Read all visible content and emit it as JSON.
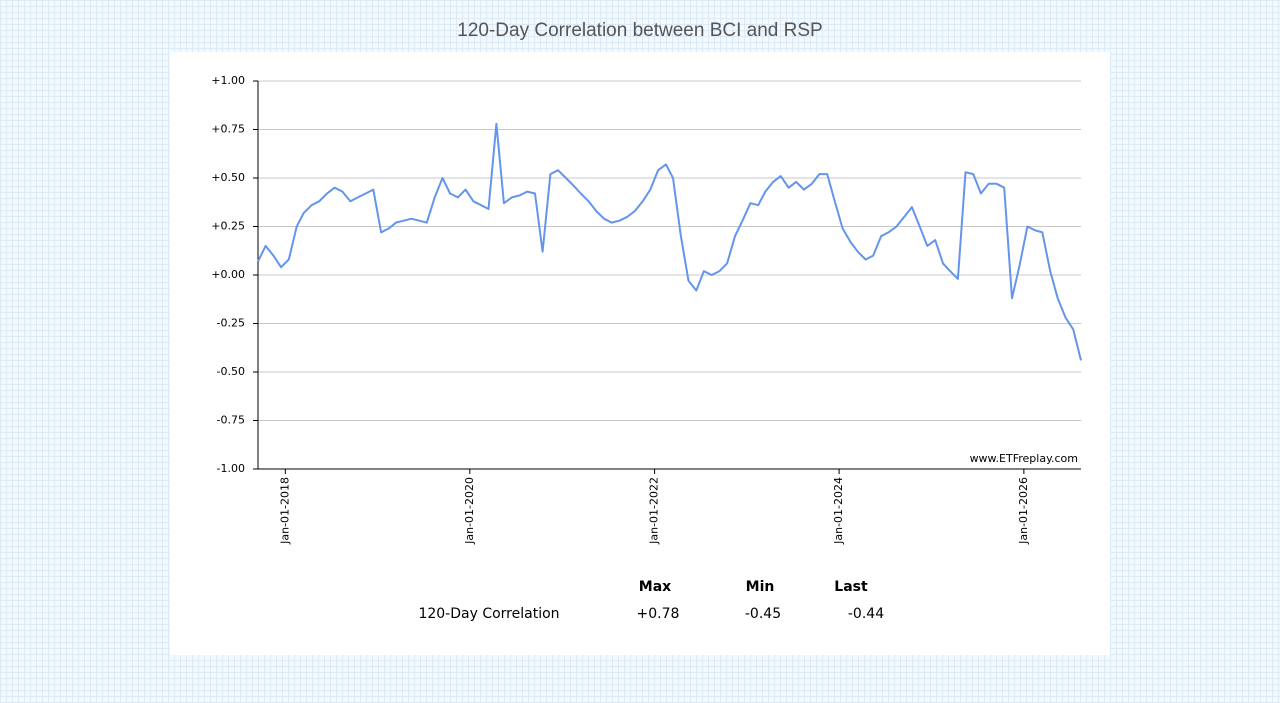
{
  "chart_data": {
    "type": "line",
    "title": "120-Day Correlation between BCI and RSP",
    "x": [
      "2017-09-15",
      "2017-10-15",
      "2017-11-15",
      "2017-12-15",
      "2018-01-15",
      "2018-02-15",
      "2018-03-15",
      "2018-04-15",
      "2018-05-15",
      "2018-06-15",
      "2018-07-15",
      "2018-08-15",
      "2018-09-15",
      "2018-10-15",
      "2018-11-15",
      "2018-12-15",
      "2019-01-15",
      "2019-02-15",
      "2019-03-15",
      "2019-04-15",
      "2019-05-15",
      "2019-06-15",
      "2019-07-15",
      "2019-08-15",
      "2019-09-15",
      "2019-10-15",
      "2019-11-15",
      "2019-12-15",
      "2020-01-15",
      "2020-02-15",
      "2020-03-15",
      "2020-04-15",
      "2020-05-15",
      "2020-06-15",
      "2020-07-15",
      "2020-08-15",
      "2020-09-15",
      "2020-10-15",
      "2020-11-15",
      "2020-12-15",
      "2021-01-15",
      "2021-02-15",
      "2021-03-15",
      "2021-04-15",
      "2021-05-15",
      "2021-06-15",
      "2021-07-15",
      "2021-08-15",
      "2021-09-15",
      "2021-10-15",
      "2021-11-15",
      "2021-12-15",
      "2022-01-15",
      "2022-02-15",
      "2022-03-15",
      "2022-04-15",
      "2022-05-15",
      "2022-06-15",
      "2022-07-15",
      "2022-08-15",
      "2022-09-15",
      "2022-10-15",
      "2022-11-15",
      "2022-12-15",
      "2023-01-15",
      "2023-02-15",
      "2023-03-15",
      "2023-04-15",
      "2023-05-15",
      "2023-06-15",
      "2023-07-15",
      "2023-08-15",
      "2023-09-15",
      "2023-10-15",
      "2023-11-15",
      "2023-12-15",
      "2024-01-15",
      "2024-02-15",
      "2024-03-15",
      "2024-04-15",
      "2024-05-15",
      "2024-06-15",
      "2024-07-15",
      "2024-08-15",
      "2024-09-15",
      "2024-10-15",
      "2024-11-15",
      "2024-12-15",
      "2025-01-15",
      "2025-02-15",
      "2025-03-15",
      "2025-04-15",
      "2025-05-15",
      "2025-06-15",
      "2025-07-15",
      "2025-08-15",
      "2025-09-15",
      "2025-10-15",
      "2025-11-15",
      "2025-12-15",
      "2026-01-15",
      "2026-02-15",
      "2026-03-15",
      "2026-04-15",
      "2026-05-15",
      "2026-06-15",
      "2026-07-15",
      "2026-08-15"
    ],
    "values": [
      0.07,
      0.15,
      0.1,
      0.04,
      0.08,
      0.25,
      0.32,
      0.36,
      0.38,
      0.42,
      0.45,
      0.43,
      0.38,
      0.4,
      0.42,
      0.44,
      0.22,
      0.24,
      0.27,
      0.28,
      0.29,
      0.28,
      0.27,
      0.4,
      0.5,
      0.42,
      0.4,
      0.44,
      0.38,
      0.36,
      0.34,
      0.78,
      0.37,
      0.4,
      0.41,
      0.43,
      0.42,
      0.12,
      0.52,
      0.54,
      0.5,
      0.46,
      0.42,
      0.38,
      0.33,
      0.29,
      0.27,
      0.28,
      0.3,
      0.33,
      0.38,
      0.44,
      0.54,
      0.57,
      0.5,
      0.2,
      -0.03,
      -0.08,
      0.02,
      0.0,
      0.02,
      0.06,
      0.2,
      0.28,
      0.37,
      0.36,
      0.43,
      0.48,
      0.51,
      0.45,
      0.48,
      0.44,
      0.47,
      0.52,
      0.52,
      0.38,
      0.24,
      0.17,
      0.12,
      0.08,
      0.1,
      0.2,
      0.22,
      0.25,
      0.3,
      0.35,
      0.25,
      0.15,
      0.18,
      0.06,
      0.02,
      -0.02,
      0.53,
      0.52,
      0.42,
      0.47,
      0.47,
      0.45,
      -0.12,
      0.05,
      0.25,
      0.23,
      0.22,
      0.02,
      -0.12,
      -0.22,
      -0.28,
      -0.44
    ],
    "color": "#6495ed",
    "xlim": [
      "2017-09-15",
      "2026-08-15"
    ],
    "xticks": [
      {
        "value": "2018-01-01",
        "label": "Jan-01-2018"
      },
      {
        "value": "2020-01-01",
        "label": "Jan-01-2020"
      },
      {
        "value": "2022-01-01",
        "label": "Jan-01-2022"
      },
      {
        "value": "2024-01-01",
        "label": "Jan-01-2024"
      },
      {
        "value": "2026-01-01",
        "label": "Jan-01-2026"
      }
    ],
    "ylim": [
      -1,
      1
    ],
    "yticks": [
      {
        "value": 1,
        "label": "+1.00"
      },
      {
        "value": 0.75,
        "label": "+0.75"
      },
      {
        "value": 0.5,
        "label": "+0.50"
      },
      {
        "value": 0.25,
        "label": "+0.25"
      },
      {
        "value": 0,
        "label": "+0.00"
      },
      {
        "value": -0.25,
        "label": "-0.25"
      },
      {
        "value": -0.5,
        "label": "-0.50"
      },
      {
        "value": -0.75,
        "label": "-0.75"
      },
      {
        "value": -1,
        "label": "-1.00"
      }
    ],
    "grid": true,
    "watermark": "www.ETFreplay.com"
  },
  "stats": {
    "columns": [
      "Max",
      "Min",
      "Last"
    ],
    "row_label": "120-Day Correlation",
    "values": [
      "+0.78",
      "-0.45",
      "-0.44"
    ]
  }
}
